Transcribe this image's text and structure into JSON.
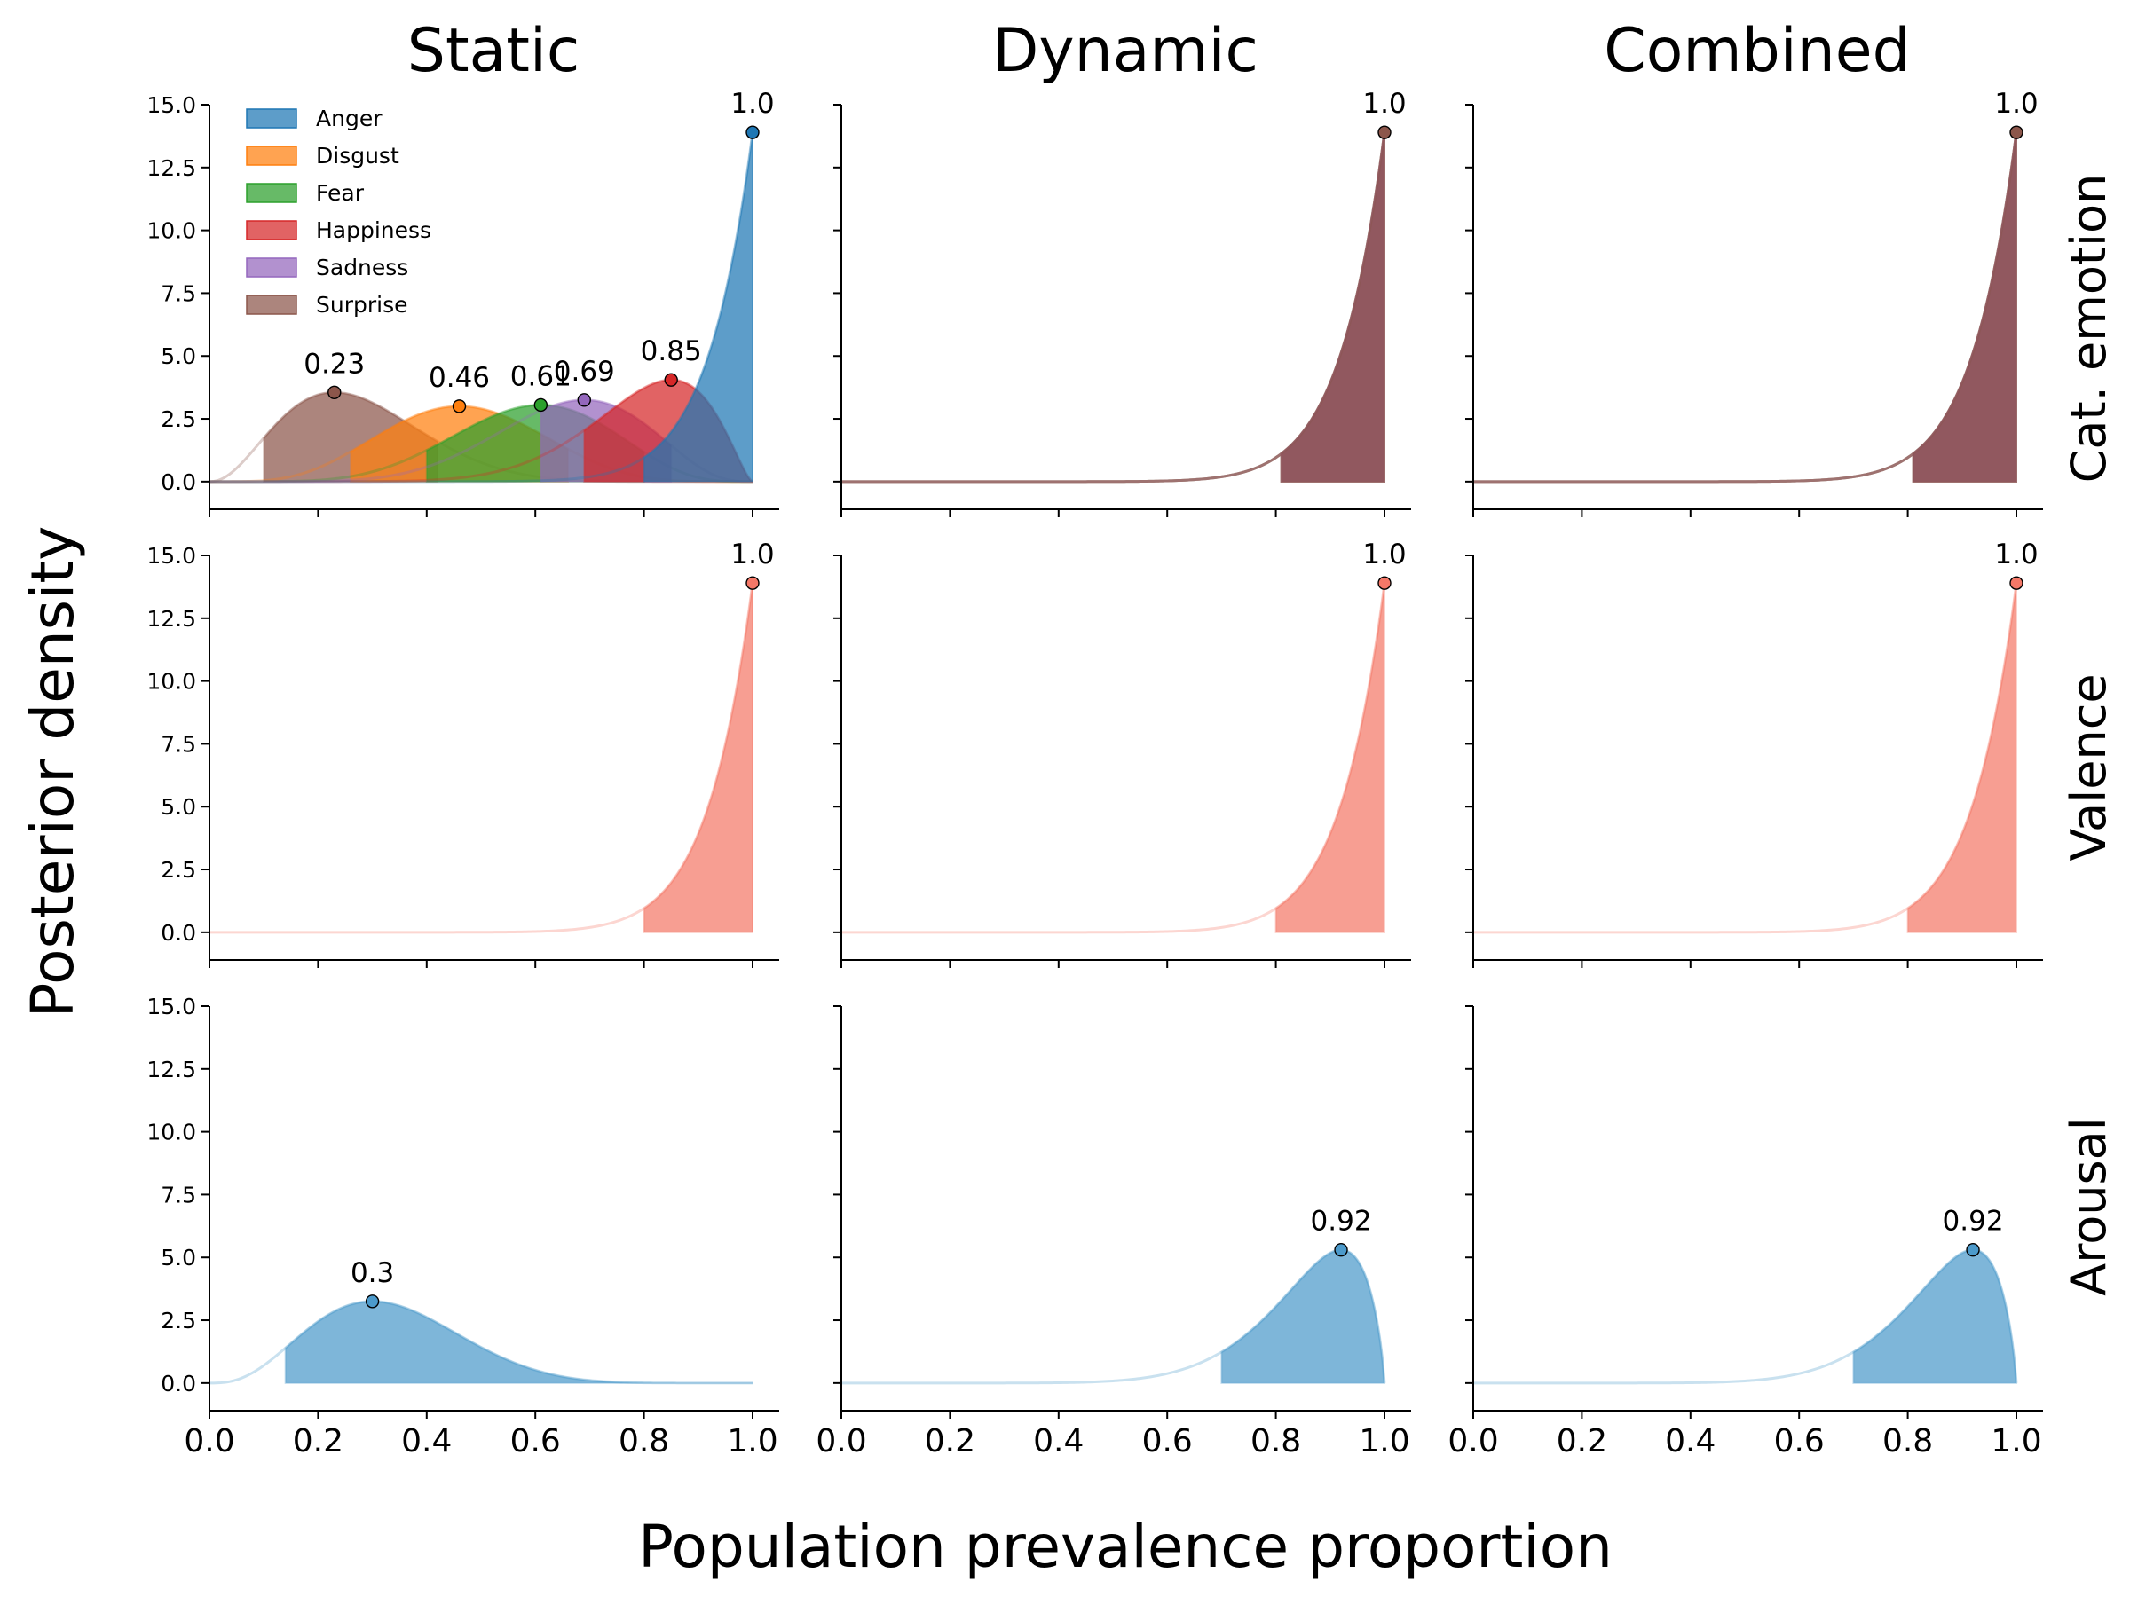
{
  "figure": {
    "ylabel": "Posterior density",
    "xlabel": "Population prevalence proportion",
    "columns": [
      "Static",
      "Dynamic",
      "Combined"
    ],
    "rows": [
      "Cat. emotion",
      "Valence",
      "Arousal"
    ]
  },
  "chart_data": {
    "type": "area",
    "xlim": [
      0.0,
      1.0
    ],
    "ylim": [
      -1.1,
      15.0
    ],
    "x_ticks": [
      "0.0",
      "0.2",
      "0.4",
      "0.6",
      "0.8",
      "1.0"
    ],
    "y_ticks": [
      "0.0",
      "2.5",
      "5.0",
      "7.5",
      "10.0",
      "12.5",
      "15.0"
    ],
    "grid": false,
    "legend": {
      "location": "top-left",
      "panel": "Cat. emotion / Static",
      "entries": [
        {
          "label": "Anger",
          "color": "#1f77b4"
        },
        {
          "label": "Disgust",
          "color": "#ff7f0e"
        },
        {
          "label": "Fear",
          "color": "#2ca02c"
        },
        {
          "label": "Happiness",
          "color": "#d62728"
        },
        {
          "label": "Sadness",
          "color": "#9467bd"
        },
        {
          "label": "Surprise",
          "color": "#8c564b"
        }
      ]
    },
    "panels": [
      {
        "row": "Cat. emotion",
        "column": "Static",
        "show_ytick_labels": true,
        "show_xtick_labels": false,
        "series": [
          {
            "name": "Surprise",
            "color": "#8c564b",
            "mode": 0.23,
            "peak": 3.55,
            "hdi": [
              0.1,
              0.42
            ],
            "label": "0.23"
          },
          {
            "name": "Disgust",
            "color": "#ff7f0e",
            "mode": 0.46,
            "peak": 3.0,
            "hdi": [
              0.26,
              0.66
            ],
            "label": "0.46"
          },
          {
            "name": "Fear",
            "color": "#2ca02c",
            "mode": 0.61,
            "peak": 3.05,
            "hdi": [
              0.4,
              0.8
            ],
            "label": "0.61"
          },
          {
            "name": "Sadness",
            "color": "#9467bd",
            "mode": 0.69,
            "peak": 3.25,
            "hdi": [
              0.61,
              0.85
            ],
            "label": "0.69"
          },
          {
            "name": "Happiness",
            "color": "#d62728",
            "mode": 0.85,
            "peak": 4.05,
            "hdi": [
              0.69,
              1.0
            ],
            "label": "0.85"
          },
          {
            "name": "Anger",
            "color": "#1f77b4",
            "mode": 1.0,
            "peak": 13.9,
            "hdi": [
              0.8,
              1.0
            ],
            "label": "1.0"
          }
        ]
      },
      {
        "row": "Cat. emotion",
        "column": "Dynamic",
        "show_ytick_labels": false,
        "show_xtick_labels": false,
        "series": [
          {
            "name": "Anger",
            "color": "#1f77b4",
            "mode": 1.0,
            "peak": 13.9,
            "hdi": [
              0.81,
              1.0
            ],
            "label": ""
          },
          {
            "name": "Disgust",
            "color": "#ff7f0e",
            "mode": 1.0,
            "peak": 13.9,
            "hdi": [
              0.81,
              1.0
            ],
            "label": ""
          },
          {
            "name": "Fear",
            "color": "#2ca02c",
            "mode": 1.0,
            "peak": 13.9,
            "hdi": [
              0.81,
              1.0
            ],
            "label": ""
          },
          {
            "name": "Happiness",
            "color": "#d62728",
            "mode": 1.0,
            "peak": 13.9,
            "hdi": [
              0.81,
              1.0
            ],
            "label": ""
          },
          {
            "name": "Sadness",
            "color": "#9467bd",
            "mode": 1.0,
            "peak": 13.9,
            "hdi": [
              0.81,
              1.0
            ],
            "label": ""
          },
          {
            "name": "Surprise",
            "color": "#8c564b",
            "mode": 1.0,
            "peak": 13.9,
            "hdi": [
              0.81,
              1.0
            ],
            "label": "1.0"
          }
        ]
      },
      {
        "row": "Cat. emotion",
        "column": "Combined",
        "show_ytick_labels": false,
        "show_xtick_labels": false,
        "series": [
          {
            "name": "Anger",
            "color": "#1f77b4",
            "mode": 1.0,
            "peak": 13.9,
            "hdi": [
              0.81,
              1.0
            ],
            "label": ""
          },
          {
            "name": "Disgust",
            "color": "#ff7f0e",
            "mode": 1.0,
            "peak": 13.9,
            "hdi": [
              0.81,
              1.0
            ],
            "label": ""
          },
          {
            "name": "Fear",
            "color": "#2ca02c",
            "mode": 1.0,
            "peak": 13.9,
            "hdi": [
              0.81,
              1.0
            ],
            "label": ""
          },
          {
            "name": "Happiness",
            "color": "#d62728",
            "mode": 1.0,
            "peak": 13.9,
            "hdi": [
              0.81,
              1.0
            ],
            "label": ""
          },
          {
            "name": "Sadness",
            "color": "#9467bd",
            "mode": 1.0,
            "peak": 13.9,
            "hdi": [
              0.81,
              1.0
            ],
            "label": ""
          },
          {
            "name": "Surprise",
            "color": "#8c564b",
            "mode": 1.0,
            "peak": 13.9,
            "hdi": [
              0.81,
              1.0
            ],
            "label": "1.0"
          }
        ]
      },
      {
        "row": "Valence",
        "column": "Static",
        "show_ytick_labels": true,
        "show_xtick_labels": false,
        "series": [
          {
            "name": "Valence",
            "color": "#f47868",
            "mode": 1.0,
            "peak": 13.9,
            "hdi": [
              0.8,
              1.0
            ],
            "label": "1.0"
          }
        ]
      },
      {
        "row": "Valence",
        "column": "Dynamic",
        "show_ytick_labels": false,
        "show_xtick_labels": false,
        "series": [
          {
            "name": "Valence",
            "color": "#f47868",
            "mode": 1.0,
            "peak": 13.9,
            "hdi": [
              0.8,
              1.0
            ],
            "label": "1.0"
          }
        ]
      },
      {
        "row": "Valence",
        "column": "Combined",
        "show_ytick_labels": false,
        "show_xtick_labels": false,
        "series": [
          {
            "name": "Valence",
            "color": "#f47868",
            "mode": 1.0,
            "peak": 13.9,
            "hdi": [
              0.8,
              1.0
            ],
            "label": "1.0"
          }
        ]
      },
      {
        "row": "Arousal",
        "column": "Static",
        "show_ytick_labels": true,
        "show_xtick_labels": true,
        "series": [
          {
            "name": "Arousal",
            "color": "#4c9acb",
            "mode": 0.3,
            "peak": 3.25,
            "hdi": [
              0.14,
              1.0
            ],
            "label": "0.3"
          }
        ]
      },
      {
        "row": "Arousal",
        "column": "Dynamic",
        "show_ytick_labels": false,
        "show_xtick_labels": true,
        "series": [
          {
            "name": "Arousal",
            "color": "#4c9acb",
            "mode": 0.92,
            "peak": 5.3,
            "hdi": [
              0.7,
              1.0
            ],
            "label": "0.92"
          }
        ]
      },
      {
        "row": "Arousal",
        "column": "Combined",
        "show_ytick_labels": false,
        "show_xtick_labels": true,
        "series": [
          {
            "name": "Arousal",
            "color": "#4c9acb",
            "mode": 0.92,
            "peak": 5.3,
            "hdi": [
              0.7,
              1.0
            ],
            "label": "0.92"
          }
        ]
      }
    ]
  }
}
